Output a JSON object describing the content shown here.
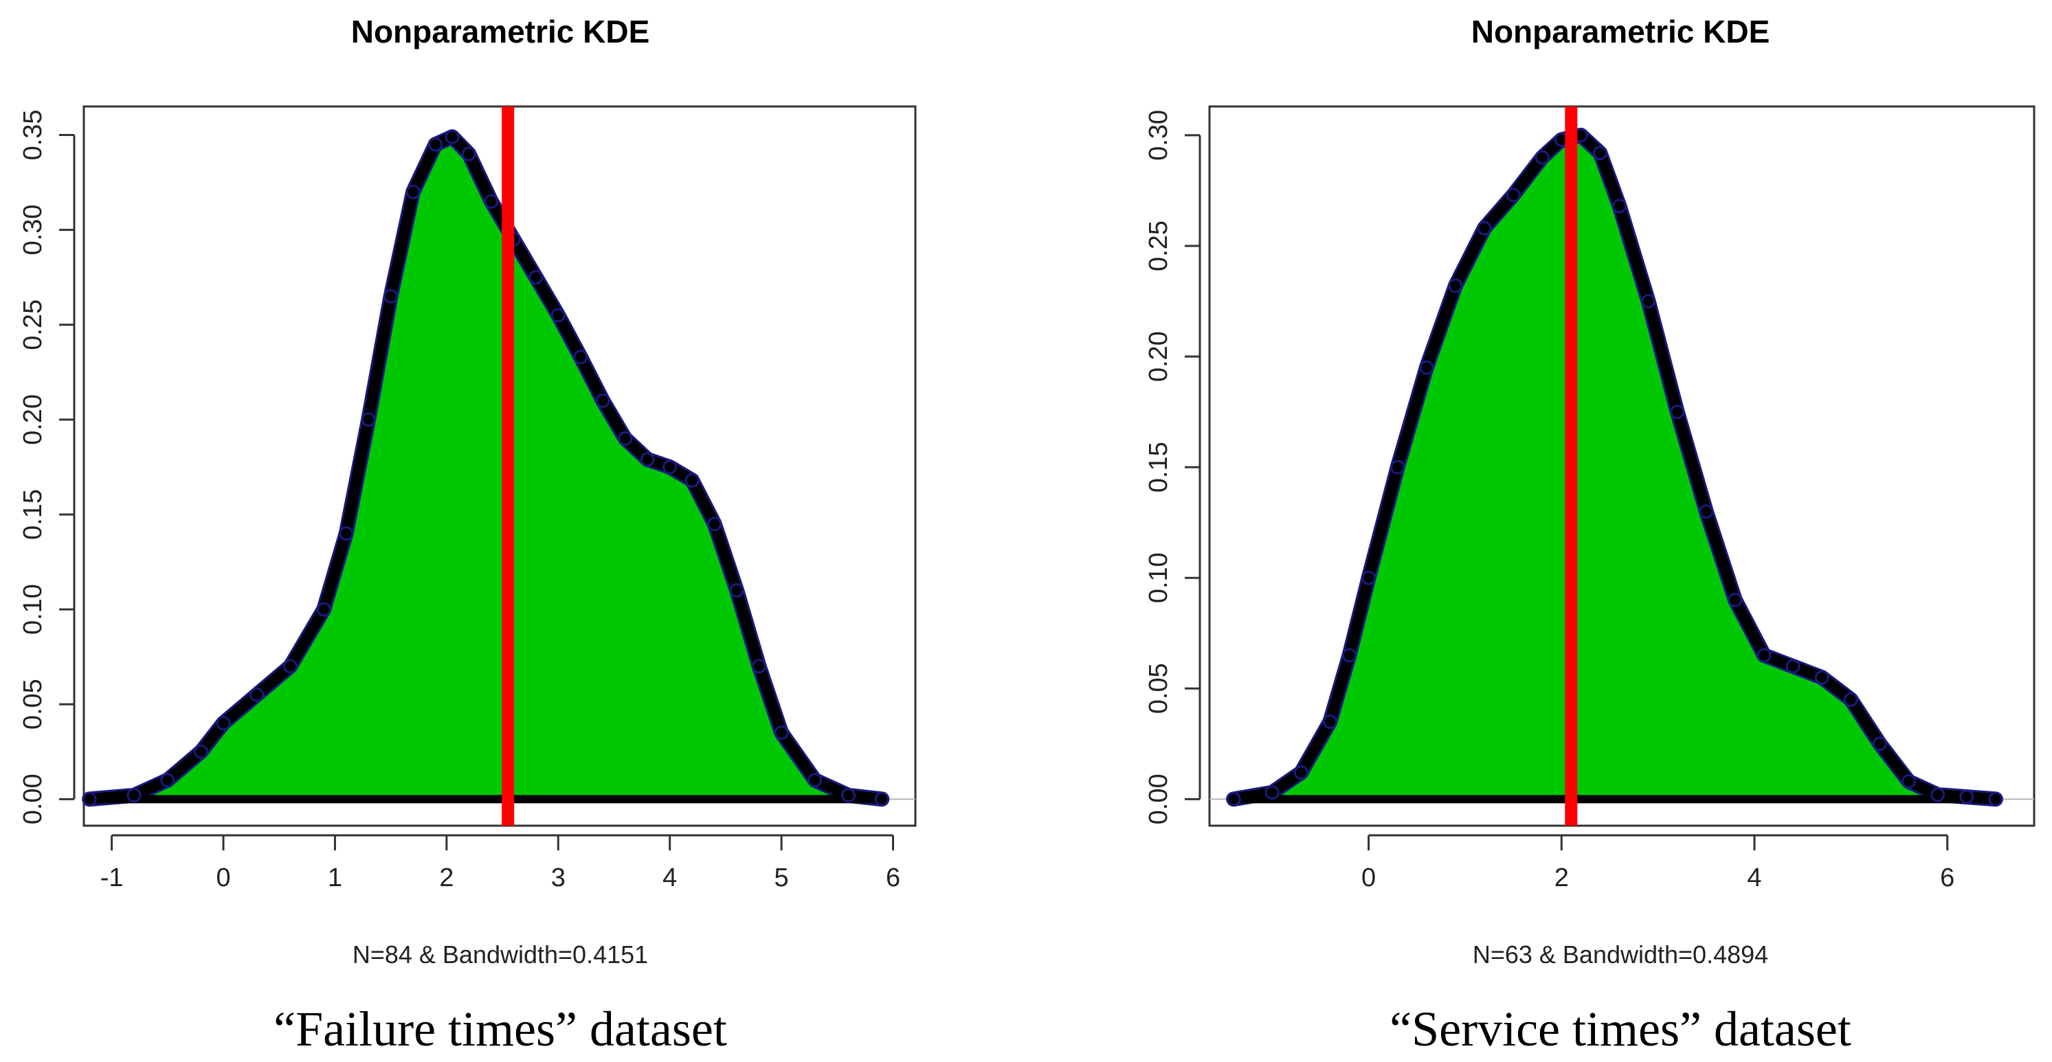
{
  "chart_data": [
    {
      "type": "area",
      "title": "Nonparametric KDE",
      "xlabel": "N=84 & Bandwidth=0.4151",
      "ylabel": "",
      "caption": "“Failure times” dataset",
      "xlim": [
        -1.25,
        6.2
      ],
      "ylim": [
        -0.014,
        0.365
      ],
      "x_ticks": [
        -1,
        0,
        1,
        2,
        3,
        4,
        5,
        6
      ],
      "x_tick_labels": [
        "-1",
        "0",
        "1",
        "2",
        "3",
        "4",
        "5",
        "6"
      ],
      "y_ticks": [
        0.0,
        0.05,
        0.1,
        0.15,
        0.2,
        0.25,
        0.3,
        0.35
      ],
      "y_tick_labels": [
        "0.00",
        "0.05",
        "0.10",
        "0.15",
        "0.20",
        "0.25",
        "0.30",
        "0.35"
      ],
      "vline_x": 2.55,
      "x": [
        -1.2,
        -0.8,
        -0.5,
        -0.2,
        0.0,
        0.3,
        0.6,
        0.9,
        1.1,
        1.3,
        1.5,
        1.7,
        1.9,
        2.05,
        2.2,
        2.4,
        2.6,
        2.8,
        3.0,
        3.2,
        3.4,
        3.6,
        3.8,
        4.0,
        4.2,
        4.4,
        4.6,
        4.8,
        5.0,
        5.3,
        5.6,
        5.9
      ],
      "density": [
        0.0,
        0.002,
        0.01,
        0.025,
        0.04,
        0.055,
        0.07,
        0.1,
        0.14,
        0.2,
        0.265,
        0.32,
        0.345,
        0.349,
        0.34,
        0.315,
        0.295,
        0.275,
        0.255,
        0.233,
        0.21,
        0.19,
        0.179,
        0.175,
        0.168,
        0.145,
        0.11,
        0.07,
        0.035,
        0.01,
        0.002,
        0.0
      ],
      "colors": {
        "fill": "#00c800",
        "outline": "#000000",
        "point_edge": "#1a1a80",
        "vline": "#ff0000"
      }
    },
    {
      "type": "area",
      "title": "Nonparametric KDE",
      "xlabel": "N=63 & Bandwidth=0.4894",
      "ylabel": "",
      "caption": "“Service times” dataset",
      "xlim": [
        -1.65,
        6.9
      ],
      "ylim": [
        -0.012,
        0.313
      ],
      "x_ticks": [
        0,
        2,
        4,
        6
      ],
      "x_tick_labels": [
        "0",
        "2",
        "4",
        "6"
      ],
      "y_ticks": [
        0.0,
        0.05,
        0.1,
        0.15,
        0.2,
        0.25,
        0.3
      ],
      "y_tick_labels": [
        "0.00",
        "0.05",
        "0.10",
        "0.15",
        "0.20",
        "0.25",
        "0.30"
      ],
      "vline_x": 2.1,
      "x": [
        -1.4,
        -1.0,
        -0.7,
        -0.4,
        -0.2,
        0.0,
        0.3,
        0.6,
        0.9,
        1.2,
        1.5,
        1.8,
        2.0,
        2.2,
        2.4,
        2.6,
        2.9,
        3.2,
        3.5,
        3.8,
        4.1,
        4.4,
        4.7,
        5.0,
        5.3,
        5.6,
        5.9,
        6.2,
        6.5
      ],
      "density": [
        0.0,
        0.003,
        0.012,
        0.035,
        0.065,
        0.1,
        0.15,
        0.195,
        0.232,
        0.258,
        0.273,
        0.29,
        0.298,
        0.3,
        0.292,
        0.268,
        0.225,
        0.175,
        0.13,
        0.09,
        0.065,
        0.06,
        0.055,
        0.045,
        0.025,
        0.008,
        0.002,
        0.001,
        0.0
      ],
      "colors": {
        "fill": "#00c800",
        "outline": "#000000",
        "point_edge": "#1a1a80",
        "vline": "#ff0000"
      }
    }
  ]
}
